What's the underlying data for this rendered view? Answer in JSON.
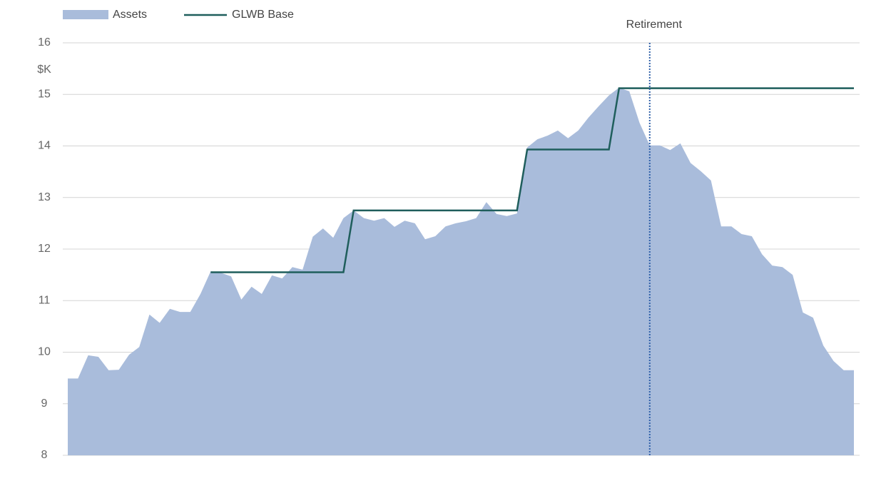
{
  "chart_data": {
    "type": "area_line",
    "y_unit_label": "$K",
    "categories": [
      null,
      null,
      null,
      null,
      null,
      null,
      null,
      null,
      null,
      null,
      null,
      null,
      null,
      null,
      null,
      null,
      null,
      null,
      null,
      null,
      null,
      null,
      null,
      null,
      null,
      null,
      null,
      null,
      null,
      null,
      null,
      null,
      null,
      null,
      null,
      null,
      null,
      null,
      null,
      null,
      null,
      null,
      null,
      null,
      null,
      null,
      null,
      null,
      null,
      null,
      null,
      null,
      null,
      null,
      null,
      null,
      null,
      null,
      null,
      null,
      null,
      null,
      null,
      null,
      null,
      null,
      null,
      null,
      null,
      null,
      null,
      null,
      null,
      null,
      null,
      null,
      null,
      null
    ],
    "series": [
      {
        "name": "Assets",
        "kind": "area",
        "color": "#a9bcdb",
        "values": [
          9.49,
          9.49,
          9.94,
          9.91,
          9.65,
          9.66,
          9.95,
          10.1,
          10.73,
          10.57,
          10.84,
          10.78,
          10.78,
          11.13,
          11.57,
          11.54,
          11.47,
          11.02,
          11.27,
          11.13,
          11.49,
          11.43,
          11.65,
          11.6,
          12.24,
          12.4,
          12.22,
          12.6,
          12.75,
          12.6,
          12.55,
          12.6,
          12.43,
          12.55,
          12.5,
          12.19,
          12.25,
          12.44,
          12.5,
          12.54,
          12.6,
          12.91,
          12.68,
          12.64,
          12.69,
          13.97,
          14.13,
          14.2,
          14.3,
          14.15,
          14.3,
          14.55,
          14.77,
          14.98,
          15.13,
          15.06,
          14.45,
          14.01,
          14.01,
          13.92,
          14.05,
          13.67,
          13.51,
          13.33,
          12.44,
          12.44,
          12.29,
          12.25,
          11.9,
          11.68,
          11.65,
          11.5,
          10.77,
          10.67,
          10.13,
          9.83,
          9.65,
          9.65
        ]
      },
      {
        "name": "GLWB Base",
        "kind": "line",
        "color": "#1f5e5c",
        "values": [
          null,
          null,
          null,
          null,
          null,
          null,
          null,
          null,
          null,
          null,
          null,
          null,
          null,
          null,
          11.55,
          11.55,
          11.55,
          11.55,
          11.55,
          11.55,
          11.55,
          11.55,
          11.55,
          11.55,
          11.55,
          11.55,
          11.55,
          11.55,
          12.75,
          12.75,
          12.75,
          12.75,
          12.75,
          12.75,
          12.75,
          12.75,
          12.75,
          12.75,
          12.75,
          12.75,
          12.75,
          12.75,
          12.75,
          12.75,
          12.75,
          13.93,
          13.93,
          13.93,
          13.93,
          13.93,
          13.93,
          13.93,
          13.93,
          13.93,
          15.12,
          15.12,
          15.12,
          15.12,
          15.12,
          15.12,
          15.12,
          15.12,
          15.12,
          15.12,
          15.12,
          15.12,
          15.12,
          15.12,
          15.12,
          15.12,
          15.12,
          15.12,
          15.12,
          15.12,
          15.12,
          15.12,
          15.12,
          15.12
        ]
      }
    ],
    "ylim": [
      8,
      16
    ],
    "yticks": [
      8,
      9,
      10,
      11,
      12,
      13,
      14,
      15,
      16
    ],
    "grid": true,
    "annotations": [
      {
        "text": "Retirement",
        "x": 57,
        "color": "#2e5fa8"
      }
    ],
    "legend": "top-left"
  }
}
